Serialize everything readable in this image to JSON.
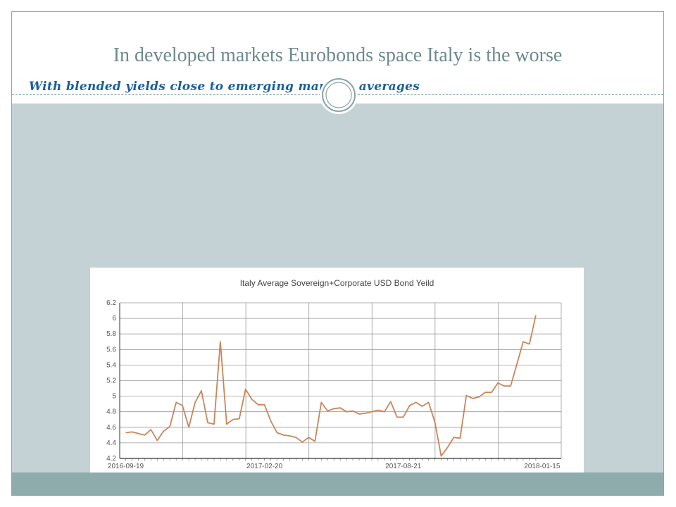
{
  "slide": {
    "title": "In developed markets Eurobonds space Italy is the worse",
    "subtitle": "With blended yields close to emerging markets averages"
  },
  "colors": {
    "title": "#6e8a8e",
    "subtitle": "#1a5f9c",
    "band": "#c4d1d5",
    "footer": "#8eacac",
    "line": "#c8865a",
    "grid": "#999999"
  },
  "chart_data": {
    "type": "line",
    "title": "Italy Average Sovereign+Corporate  USD Bond Yeild",
    "xlabel": "",
    "ylabel": "",
    "ylim": [
      4.2,
      6.2
    ],
    "yticks": [
      4.2,
      4.4,
      4.6,
      4.8,
      5,
      5.2,
      5.4,
      5.6,
      5.8,
      6,
      6.2
    ],
    "ytick_labels": [
      "4.2",
      "4.4",
      "4.6",
      "4.8",
      "5",
      "5.2",
      "5.4",
      "5.6",
      "5.8",
      "6",
      "6.2"
    ],
    "xtick_labels": [
      "2016-09-19",
      "2017-02-20",
      "2017-08-21",
      "2018-01-15"
    ],
    "xtick_indices": [
      0,
      22,
      44,
      66
    ],
    "grid": true,
    "legend": "none",
    "series": [
      {
        "values": [
          4.53,
          4.54,
          4.52,
          4.5,
          4.57,
          4.43,
          4.55,
          4.61,
          4.92,
          4.88,
          4.6,
          4.92,
          5.07,
          4.66,
          4.64,
          5.7,
          4.64,
          4.7,
          4.71,
          5.09,
          4.96,
          4.89,
          4.89,
          4.68,
          4.53,
          4.5,
          4.49,
          4.47,
          4.41,
          4.47,
          4.42,
          4.92,
          4.81,
          4.84,
          4.85,
          4.8,
          4.81,
          4.77,
          4.78,
          4.8,
          4.82,
          4.8,
          4.93,
          4.73,
          4.73,
          4.88,
          4.92,
          4.87,
          4.92,
          4.67,
          4.23,
          4.34,
          4.47,
          4.46,
          5.01,
          4.97,
          4.99,
          5.05,
          5.05,
          5.17,
          5.13,
          5.13,
          5.41,
          5.7,
          5.67,
          6.04
        ]
      }
    ]
  }
}
